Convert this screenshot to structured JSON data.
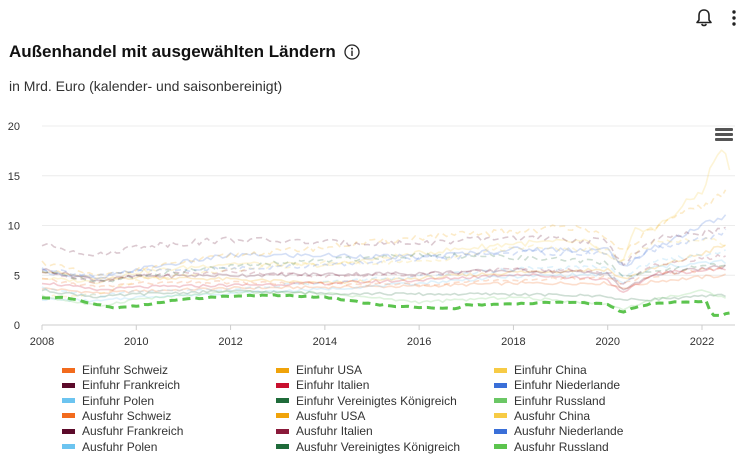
{
  "header": {
    "title": "Außenhandel mit ausgewählten Ländern",
    "subtitle": "in Mrd. Euro (kalender- und saisonbereinigt)",
    "bell_icon": "bell-icon",
    "more_icon": "more-vertical-icon",
    "info_icon": "info-icon"
  },
  "chart_data": {
    "type": "line",
    "title": "Außenhandel mit ausgewählten Ländern",
    "subtitle": "in Mrd. Euro (kalender- und saisonbereinigt)",
    "xlabel": "",
    "ylabel": "",
    "xlim": [
      2008,
      2022.7
    ],
    "ylim": [
      0,
      20
    ],
    "x_ticks": [
      "2008",
      "2010",
      "2012",
      "2014",
      "2016",
      "2018",
      "2020",
      "2022"
    ],
    "y_ticks": [
      "0",
      "5",
      "10",
      "15",
      "20"
    ],
    "grid": "horizontal",
    "legend_position": "bottom",
    "note": "Monthly series; values approximated from anchor points (year, Mrd. Euro). Only 'Ausfuhr Russland' is highlighted.",
    "highlighted": "Ausfuhr Russland",
    "series": [
      {
        "name": "Einfuhr Schweiz",
        "color": "#f26b1d",
        "dash": false,
        "points": [
          [
            2008,
            3.7
          ],
          [
            2009.2,
            3.2
          ],
          [
            2010,
            3.4
          ],
          [
            2012,
            3.7
          ],
          [
            2014,
            3.8
          ],
          [
            2016,
            3.9
          ],
          [
            2018,
            4.2
          ],
          [
            2020,
            4.2
          ],
          [
            2020.3,
            3.7
          ],
          [
            2021,
            4.4
          ],
          [
            2022.5,
            5.0
          ]
        ]
      },
      {
        "name": "Einfuhr USA",
        "color": "#f0a30a",
        "dash": false,
        "points": [
          [
            2008,
            5.5
          ],
          [
            2009.2,
            4.6
          ],
          [
            2010,
            4.8
          ],
          [
            2012,
            4.6
          ],
          [
            2014,
            4.2
          ],
          [
            2016,
            4.7
          ],
          [
            2018,
            5.3
          ],
          [
            2020,
            5.6
          ],
          [
            2020.3,
            4.6
          ],
          [
            2021,
            5.7
          ],
          [
            2022,
            7.2
          ],
          [
            2022.5,
            8.0
          ]
        ]
      },
      {
        "name": "Einfuhr China",
        "color": "#f7cb45",
        "dash": false,
        "points": [
          [
            2008,
            4.7
          ],
          [
            2009.2,
            4.3
          ],
          [
            2010,
            5.3
          ],
          [
            2012,
            6.2
          ],
          [
            2014,
            6.0
          ],
          [
            2016,
            7.2
          ],
          [
            2018,
            8.2
          ],
          [
            2019.5,
            8.4
          ],
          [
            2020.3,
            6.0
          ],
          [
            2020.6,
            9.8
          ],
          [
            2021,
            9.6
          ],
          [
            2022,
            13.5
          ],
          [
            2022.4,
            18.0
          ],
          [
            2022.6,
            15.5
          ]
        ]
      },
      {
        "name": "Einfuhr Frankreich",
        "color": "#5c0a2a",
        "dash": false,
        "points": [
          [
            2008,
            5.6
          ],
          [
            2009.2,
            4.5
          ],
          [
            2010,
            4.9
          ],
          [
            2012,
            5.0
          ],
          [
            2014,
            5.1
          ],
          [
            2016,
            5.2
          ],
          [
            2018,
            5.5
          ],
          [
            2020,
            5.2
          ],
          [
            2020.3,
            3.5
          ],
          [
            2021,
            5.1
          ],
          [
            2022.5,
            5.9
          ]
        ]
      },
      {
        "name": "Einfuhr Italien",
        "color": "#c8102e",
        "dash": false,
        "points": [
          [
            2008,
            4.3
          ],
          [
            2009.2,
            3.5
          ],
          [
            2010,
            3.8
          ],
          [
            2012,
            4.0
          ],
          [
            2014,
            4.2
          ],
          [
            2016,
            4.5
          ],
          [
            2018,
            5.1
          ],
          [
            2020,
            4.6
          ],
          [
            2020.3,
            3.1
          ],
          [
            2021,
            5.2
          ],
          [
            2022.5,
            5.6
          ]
        ]
      },
      {
        "name": "Einfuhr Niederlande",
        "color": "#3a6fd8",
        "dash": false,
        "points": [
          [
            2008,
            5.4
          ],
          [
            2009.2,
            4.6
          ],
          [
            2010,
            5.6
          ],
          [
            2012,
            7.0
          ],
          [
            2014,
            7.0
          ],
          [
            2016,
            6.8
          ],
          [
            2018,
            7.6
          ],
          [
            2020,
            7.6
          ],
          [
            2020.3,
            5.8
          ],
          [
            2021,
            7.8
          ],
          [
            2022,
            10.0
          ],
          [
            2022.5,
            11.0
          ]
        ]
      },
      {
        "name": "Einfuhr Polen",
        "color": "#6cc4f0",
        "dash": false,
        "points": [
          [
            2008,
            2.6
          ],
          [
            2009.2,
            2.4
          ],
          [
            2010,
            2.8
          ],
          [
            2012,
            3.2
          ],
          [
            2014,
            3.6
          ],
          [
            2016,
            4.2
          ],
          [
            2018,
            4.9
          ],
          [
            2020,
            5.1
          ],
          [
            2020.3,
            4.2
          ],
          [
            2021,
            5.8
          ],
          [
            2022.5,
            6.4
          ]
        ]
      },
      {
        "name": "Einfuhr Vereinigtes Königreich",
        "color": "#1f6b3a",
        "dash": false,
        "points": [
          [
            2008,
            3.5
          ],
          [
            2009.2,
            2.8
          ],
          [
            2010,
            3.1
          ],
          [
            2012,
            3.4
          ],
          [
            2014,
            3.2
          ],
          [
            2016,
            3.1
          ],
          [
            2018,
            3.1
          ],
          [
            2020,
            2.9
          ],
          [
            2020.3,
            2.5
          ],
          [
            2021,
            2.6
          ],
          [
            2022.5,
            3.0
          ]
        ]
      },
      {
        "name": "Einfuhr Russland",
        "color": "#6bc765",
        "dash": false,
        "points": [
          [
            2008,
            2.9
          ],
          [
            2009.2,
            1.9
          ],
          [
            2010,
            2.6
          ],
          [
            2012,
            3.3
          ],
          [
            2014,
            3.2
          ],
          [
            2016,
            2.3
          ],
          [
            2018,
            2.8
          ],
          [
            2020,
            2.1
          ],
          [
            2020.3,
            1.6
          ],
          [
            2021,
            2.6
          ],
          [
            2022,
            3.4
          ],
          [
            2022.5,
            2.8
          ]
        ]
      },
      {
        "name": "Ausfuhr Schweiz",
        "color": "#f26b1d",
        "dash": true,
        "points": [
          [
            2008,
            4.6
          ],
          [
            2009.2,
            3.8
          ],
          [
            2010,
            4.2
          ],
          [
            2012,
            4.3
          ],
          [
            2014,
            4.1
          ],
          [
            2016,
            4.1
          ],
          [
            2018,
            4.5
          ],
          [
            2020,
            4.8
          ],
          [
            2020.3,
            4.2
          ],
          [
            2021,
            5.0
          ],
          [
            2022.5,
            5.8
          ]
        ]
      },
      {
        "name": "Ausfuhr USA",
        "color": "#f0a30a",
        "dash": true,
        "points": [
          [
            2008,
            6.3
          ],
          [
            2009.2,
            4.9
          ],
          [
            2010,
            5.6
          ],
          [
            2012,
            7.0
          ],
          [
            2014,
            7.8
          ],
          [
            2016,
            8.8
          ],
          [
            2018,
            9.4
          ],
          [
            2019.5,
            10.0
          ],
          [
            2020.3,
            7.4
          ],
          [
            2021,
            9.8
          ],
          [
            2022,
            12.0
          ],
          [
            2022.5,
            13.2
          ]
        ]
      },
      {
        "name": "Ausfuhr China",
        "color": "#f7cb45",
        "dash": true,
        "points": [
          [
            2008,
            2.8
          ],
          [
            2009.2,
            3.1
          ],
          [
            2010,
            4.5
          ],
          [
            2012,
            5.5
          ],
          [
            2014,
            6.2
          ],
          [
            2016,
            6.3
          ],
          [
            2018,
            7.8
          ],
          [
            2020,
            7.6
          ],
          [
            2020.3,
            6.4
          ],
          [
            2021,
            8.4
          ],
          [
            2022,
            8.6
          ],
          [
            2022.5,
            8.2
          ]
        ]
      },
      {
        "name": "Ausfuhr Frankreich",
        "color": "#5c0a2a",
        "dash": true,
        "points": [
          [
            2008,
            8.1
          ],
          [
            2009.2,
            7.0
          ],
          [
            2010,
            7.9
          ],
          [
            2012,
            8.6
          ],
          [
            2014,
            8.3
          ],
          [
            2016,
            8.2
          ],
          [
            2018,
            8.8
          ],
          [
            2020,
            8.4
          ],
          [
            2020.3,
            6.1
          ],
          [
            2021,
            8.6
          ],
          [
            2022.5,
            9.6
          ]
        ]
      },
      {
        "name": "Ausfuhr Italien",
        "color": "#8a1a3a",
        "dash": true,
        "points": [
          [
            2008,
            5.3
          ],
          [
            2009.2,
            4.3
          ],
          [
            2010,
            5.0
          ],
          [
            2012,
            5.4
          ],
          [
            2014,
            4.9
          ],
          [
            2016,
            5.1
          ],
          [
            2018,
            5.6
          ],
          [
            2020,
            5.4
          ],
          [
            2020.3,
            4.1
          ],
          [
            2021,
            6.0
          ],
          [
            2022.5,
            7.0
          ]
        ]
      },
      {
        "name": "Ausfuhr Niederlande",
        "color": "#3a6fd8",
        "dash": true,
        "points": [
          [
            2008,
            5.7
          ],
          [
            2009.2,
            4.9
          ],
          [
            2010,
            5.4
          ],
          [
            2012,
            5.7
          ],
          [
            2014,
            6.0
          ],
          [
            2016,
            6.6
          ],
          [
            2018,
            7.3
          ],
          [
            2020,
            7.2
          ],
          [
            2020.3,
            6.0
          ],
          [
            2021,
            7.6
          ],
          [
            2022,
            8.6
          ],
          [
            2022.5,
            9.4
          ]
        ]
      },
      {
        "name": "Ausfuhr Polen",
        "color": "#6cc4f0",
        "dash": true,
        "points": [
          [
            2008,
            3.7
          ],
          [
            2009.2,
            2.9
          ],
          [
            2010,
            3.4
          ],
          [
            2012,
            3.6
          ],
          [
            2014,
            4.3
          ],
          [
            2016,
            4.9
          ],
          [
            2018,
            5.6
          ],
          [
            2020,
            5.9
          ],
          [
            2020.3,
            4.9
          ],
          [
            2021,
            6.5
          ],
          [
            2022.5,
            7.4
          ]
        ]
      },
      {
        "name": "Ausfuhr Vereinigtes Königreich",
        "color": "#1f6b3a",
        "dash": true,
        "points": [
          [
            2008,
            5.3
          ],
          [
            2009.2,
            4.3
          ],
          [
            2010,
            4.9
          ],
          [
            2012,
            5.9
          ],
          [
            2014,
            6.5
          ],
          [
            2016,
            7.1
          ],
          [
            2018,
            6.8
          ],
          [
            2020,
            6.3
          ],
          [
            2020.3,
            4.9
          ],
          [
            2021,
            5.4
          ],
          [
            2022.5,
            6.1
          ]
        ]
      },
      {
        "name": "Ausfuhr Russland",
        "color": "#5cc44e",
        "dash": true,
        "points": [
          [
            2008,
            2.7
          ],
          [
            2008.5,
            2.8
          ],
          [
            2009,
            2.2
          ],
          [
            2009.6,
            1.7
          ],
          [
            2010,
            1.9
          ],
          [
            2011,
            2.6
          ],
          [
            2012,
            2.9
          ],
          [
            2013,
            3.0
          ],
          [
            2014,
            2.8
          ],
          [
            2014.5,
            2.5
          ],
          [
            2015,
            2.1
          ],
          [
            2015.5,
            1.9
          ],
          [
            2016,
            1.8
          ],
          [
            2016.8,
            1.6
          ],
          [
            2017,
            2.0
          ],
          [
            2018,
            2.1
          ],
          [
            2019,
            2.3
          ],
          [
            2020,
            2.1
          ],
          [
            2020.3,
            1.3
          ],
          [
            2020.7,
            1.9
          ],
          [
            2021,
            2.2
          ],
          [
            2022,
            2.4
          ],
          [
            2022.1,
            2.5
          ],
          [
            2022.2,
            0.9
          ],
          [
            2022.4,
            1.0
          ],
          [
            2022.6,
            1.2
          ]
        ]
      }
    ]
  }
}
